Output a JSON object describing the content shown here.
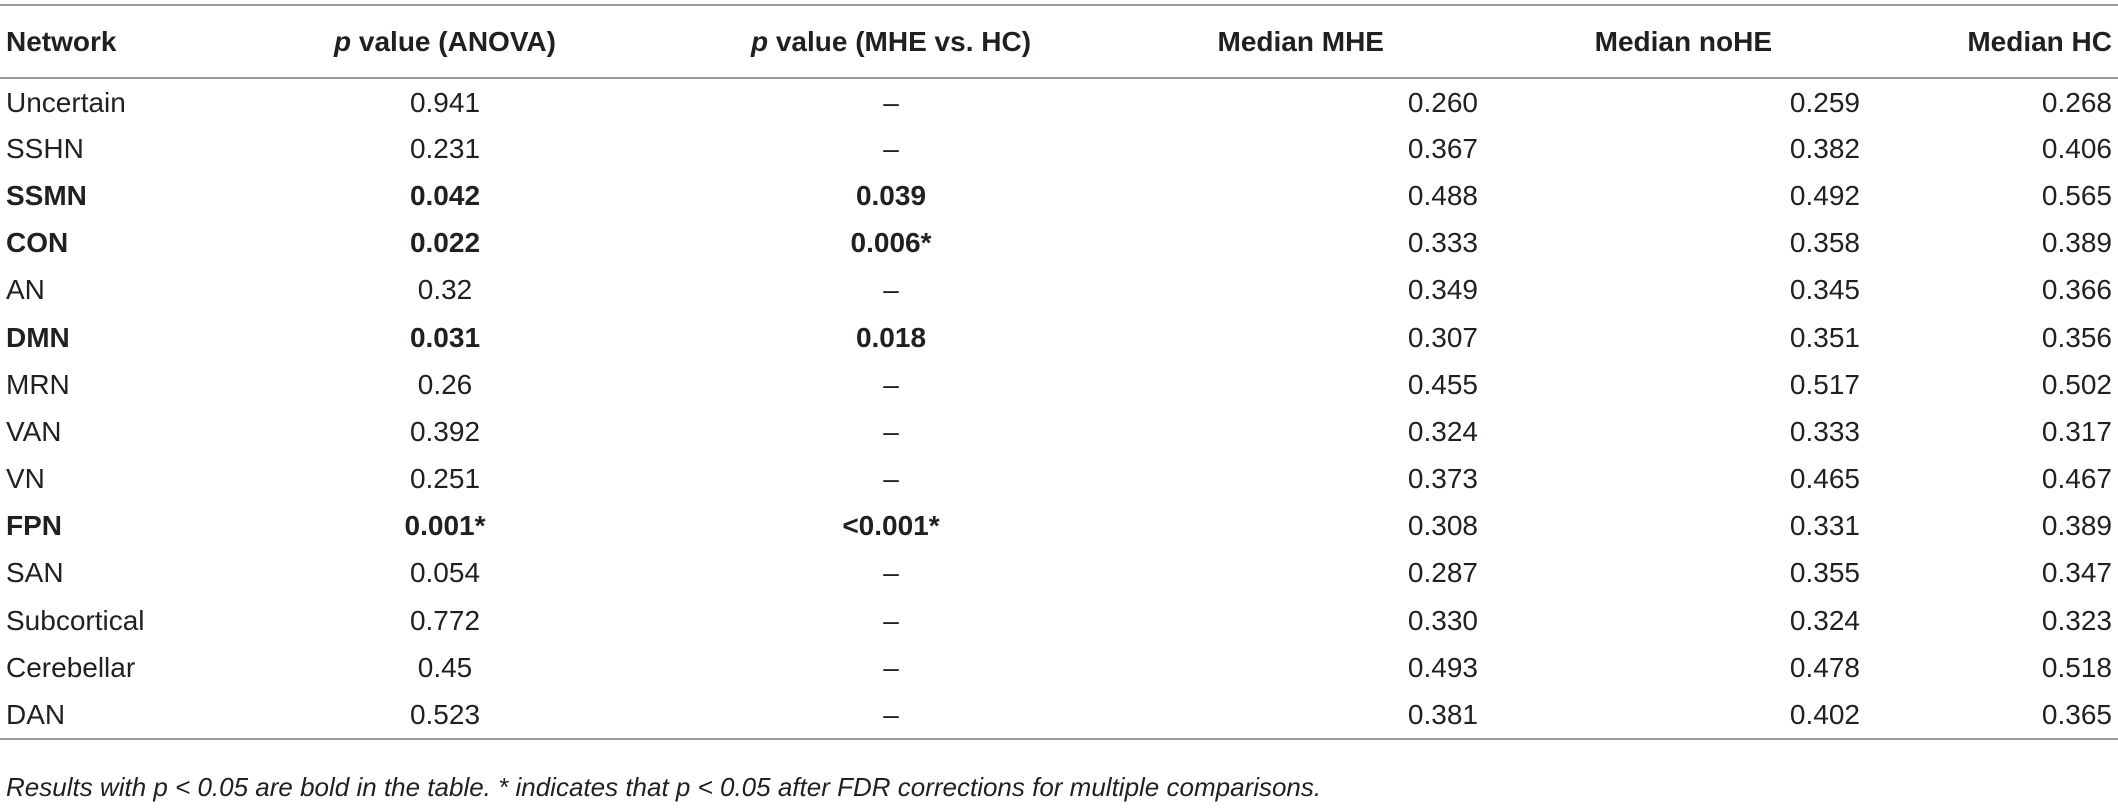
{
  "table": {
    "headers": {
      "network": "Network",
      "p_anova_prefix": "p",
      "p_anova_suffix": " value (ANOVA)",
      "p_mhe_prefix": "p",
      "p_mhe_suffix": " value (MHE vs. HC)",
      "median_mhe": "Median MHE",
      "median_nohe": "Median noHE",
      "median_hc": "Median HC"
    },
    "rows": [
      {
        "network": "Uncertain",
        "p_anova": "0.941",
        "p_mhe_hc": "–",
        "median_mhe": "0.260",
        "median_nohe": "0.259",
        "median_hc": "0.268",
        "bold": false
      },
      {
        "network": "SSHN",
        "p_anova": "0.231",
        "p_mhe_hc": "–",
        "median_mhe": "0.367",
        "median_nohe": "0.382",
        "median_hc": "0.406",
        "bold": false
      },
      {
        "network": "SSMN",
        "p_anova": "0.042",
        "p_mhe_hc": "0.039",
        "median_mhe": "0.488",
        "median_nohe": "0.492",
        "median_hc": "0.565",
        "bold": true
      },
      {
        "network": "CON",
        "p_anova": "0.022",
        "p_mhe_hc": "0.006*",
        "median_mhe": "0.333",
        "median_nohe": "0.358",
        "median_hc": "0.389",
        "bold": true
      },
      {
        "network": "AN",
        "p_anova": "0.32",
        "p_mhe_hc": "–",
        "median_mhe": "0.349",
        "median_nohe": "0.345",
        "median_hc": "0.366",
        "bold": false
      },
      {
        "network": "DMN",
        "p_anova": "0.031",
        "p_mhe_hc": "0.018",
        "median_mhe": "0.307",
        "median_nohe": "0.351",
        "median_hc": "0.356",
        "bold": true
      },
      {
        "network": "MRN",
        "p_anova": "0.26",
        "p_mhe_hc": "–",
        "median_mhe": "0.455",
        "median_nohe": "0.517",
        "median_hc": "0.502",
        "bold": false
      },
      {
        "network": "VAN",
        "p_anova": "0.392",
        "p_mhe_hc": "–",
        "median_mhe": "0.324",
        "median_nohe": "0.333",
        "median_hc": "0.317",
        "bold": false
      },
      {
        "network": "VN",
        "p_anova": "0.251",
        "p_mhe_hc": "–",
        "median_mhe": "0.373",
        "median_nohe": "0.465",
        "median_hc": "0.467",
        "bold": false
      },
      {
        "network": "FPN",
        "p_anova": "0.001*",
        "p_mhe_hc": "<0.001*",
        "median_mhe": "0.308",
        "median_nohe": "0.331",
        "median_hc": "0.389",
        "bold": true
      },
      {
        "network": "SAN",
        "p_anova": "0.054",
        "p_mhe_hc": "–",
        "median_mhe": "0.287",
        "median_nohe": "0.355",
        "median_hc": "0.347",
        "bold": false
      },
      {
        "network": "Subcortical",
        "p_anova": "0.772",
        "p_mhe_hc": "–",
        "median_mhe": "0.330",
        "median_nohe": "0.324",
        "median_hc": "0.323",
        "bold": false
      },
      {
        "network": "Cerebellar",
        "p_anova": "0.45",
        "p_mhe_hc": "–",
        "median_mhe": "0.493",
        "median_nohe": "0.478",
        "median_hc": "0.518",
        "bold": false
      },
      {
        "network": "DAN",
        "p_anova": "0.523",
        "p_mhe_hc": "–",
        "median_mhe": "0.381",
        "median_nohe": "0.402",
        "median_hc": "0.365",
        "bold": false
      }
    ]
  },
  "footnote": "Results with p < 0.05 are bold in the table. * indicates that p < 0.05 after FDR corrections for multiple comparisons."
}
